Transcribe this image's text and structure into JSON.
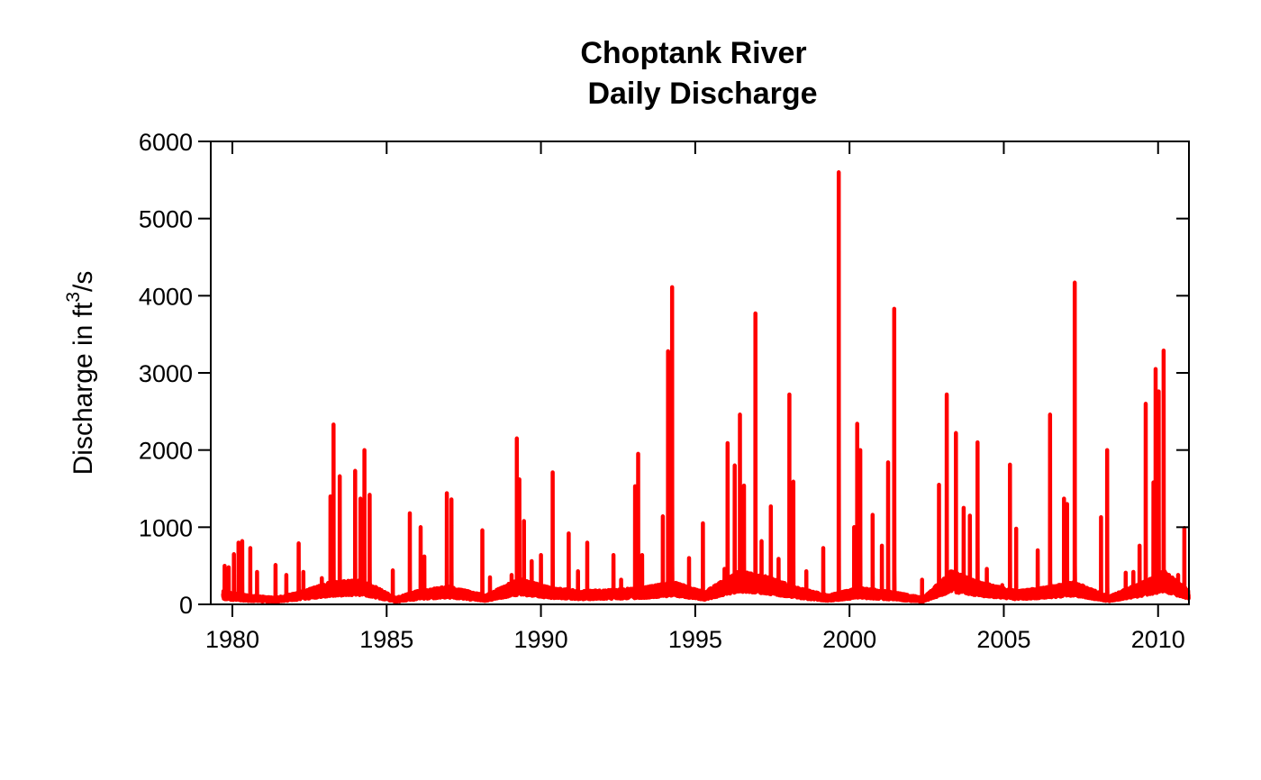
{
  "chart_data": {
    "type": "line",
    "title": "Choptank River",
    "subtitle": "Daily Discharge",
    "ylabel": "Discharge in ft",
    "ylabel_superscript": "3",
    "ylabel_suffix": "/s",
    "xlabel": "",
    "xlim": [
      1979.3,
      2011.0
    ],
    "ylim": [
      0,
      6000
    ],
    "xticks": [
      1980,
      1985,
      1990,
      1995,
      2000,
      2005,
      2010
    ],
    "yticks": [
      0,
      1000,
      2000,
      3000,
      4000,
      5000,
      6000
    ],
    "grid": false,
    "legend": "none",
    "line_color": "#ff0000",
    "series": [
      {
        "baseline": [
          [
            1979.7,
            120
          ],
          [
            1980.5,
            80
          ],
          [
            1981.4,
            60
          ],
          [
            1982.3,
            120
          ],
          [
            1983.2,
            200
          ],
          [
            1984.2,
            220
          ],
          [
            1985.3,
            60
          ],
          [
            1986.0,
            120
          ],
          [
            1987.0,
            160
          ],
          [
            1988.2,
            80
          ],
          [
            1989.3,
            230
          ],
          [
            1990.3,
            150
          ],
          [
            1991.3,
            120
          ],
          [
            1992.3,
            130
          ],
          [
            1993.3,
            150
          ],
          [
            1994.3,
            200
          ],
          [
            1995.3,
            110
          ],
          [
            1996.4,
            300
          ],
          [
            1997.3,
            250
          ],
          [
            1998.3,
            150
          ],
          [
            1999.3,
            80
          ],
          [
            2000.3,
            150
          ],
          [
            2001.4,
            110
          ],
          [
            2002.4,
            60
          ],
          [
            2003.3,
            300
          ],
          [
            2004.2,
            200
          ],
          [
            2005.4,
            120
          ],
          [
            2006.3,
            150
          ],
          [
            2007.3,
            200
          ],
          [
            2008.4,
            70
          ],
          [
            2009.5,
            200
          ],
          [
            2010.2,
            300
          ],
          [
            2011.0,
            120
          ]
        ],
        "peaks": [
          [
            1979.75,
            500
          ],
          [
            1979.88,
            480
          ],
          [
            1980.05,
            650
          ],
          [
            1980.2,
            800
          ],
          [
            1980.32,
            820
          ],
          [
            1980.58,
            730
          ],
          [
            1980.8,
            420
          ],
          [
            1981.4,
            510
          ],
          [
            1981.75,
            380
          ],
          [
            1982.15,
            790
          ],
          [
            1982.3,
            420
          ],
          [
            1982.9,
            340
          ],
          [
            1983.18,
            1400
          ],
          [
            1983.28,
            2330
          ],
          [
            1983.48,
            1660
          ],
          [
            1983.62,
            300
          ],
          [
            1983.98,
            1730
          ],
          [
            1984.15,
            1370
          ],
          [
            1984.28,
            2000
          ],
          [
            1984.45,
            1420
          ],
          [
            1985.2,
            440
          ],
          [
            1985.75,
            1180
          ],
          [
            1986.1,
            1000
          ],
          [
            1986.22,
            620
          ],
          [
            1986.95,
            1440
          ],
          [
            1987.1,
            1360
          ],
          [
            1988.1,
            960
          ],
          [
            1988.35,
            350
          ],
          [
            1989.05,
            380
          ],
          [
            1989.22,
            2150
          ],
          [
            1989.3,
            1620
          ],
          [
            1989.45,
            1080
          ],
          [
            1989.7,
            560
          ],
          [
            1990.0,
            640
          ],
          [
            1990.38,
            1710
          ],
          [
            1990.9,
            920
          ],
          [
            1991.2,
            430
          ],
          [
            1991.5,
            800
          ],
          [
            1992.35,
            640
          ],
          [
            1992.6,
            320
          ],
          [
            1993.05,
            1530
          ],
          [
            1993.15,
            1950
          ],
          [
            1993.28,
            640
          ],
          [
            1993.95,
            1140
          ],
          [
            1994.12,
            3280
          ],
          [
            1994.25,
            4110
          ],
          [
            1994.8,
            600
          ],
          [
            1995.25,
            1050
          ],
          [
            1995.95,
            460
          ],
          [
            1996.05,
            2090
          ],
          [
            1996.28,
            1800
          ],
          [
            1996.45,
            2460
          ],
          [
            1996.58,
            1540
          ],
          [
            1996.95,
            3770
          ],
          [
            1997.15,
            820
          ],
          [
            1997.45,
            1270
          ],
          [
            1997.7,
            590
          ],
          [
            1998.05,
            2720
          ],
          [
            1998.18,
            1590
          ],
          [
            1998.6,
            430
          ],
          [
            1999.15,
            730
          ],
          [
            1999.65,
            5600
          ],
          [
            2000.15,
            1000
          ],
          [
            2000.25,
            2340
          ],
          [
            2000.35,
            2000
          ],
          [
            2000.75,
            1160
          ],
          [
            2001.05,
            760
          ],
          [
            2001.25,
            1840
          ],
          [
            2001.45,
            3830
          ],
          [
            2002.35,
            320
          ],
          [
            2002.9,
            1550
          ],
          [
            2003.15,
            2720
          ],
          [
            2003.45,
            2220
          ],
          [
            2003.7,
            1250
          ],
          [
            2003.9,
            1150
          ],
          [
            2004.15,
            2100
          ],
          [
            2004.45,
            460
          ],
          [
            2004.95,
            250
          ],
          [
            2005.2,
            1810
          ],
          [
            2005.4,
            980
          ],
          [
            2006.1,
            700
          ],
          [
            2006.5,
            2460
          ],
          [
            2006.95,
            1370
          ],
          [
            2007.05,
            1300
          ],
          [
            2007.3,
            4170
          ],
          [
            2008.15,
            1130
          ],
          [
            2008.35,
            2000
          ],
          [
            2008.95,
            410
          ],
          [
            2009.2,
            420
          ],
          [
            2009.4,
            760
          ],
          [
            2009.6,
            2600
          ],
          [
            2009.85,
            1580
          ],
          [
            2009.92,
            3050
          ],
          [
            2010.02,
            2760
          ],
          [
            2010.18,
            3290
          ],
          [
            2010.4,
            350
          ],
          [
            2010.65,
            380
          ],
          [
            2010.85,
            990
          ]
        ]
      }
    ]
  }
}
